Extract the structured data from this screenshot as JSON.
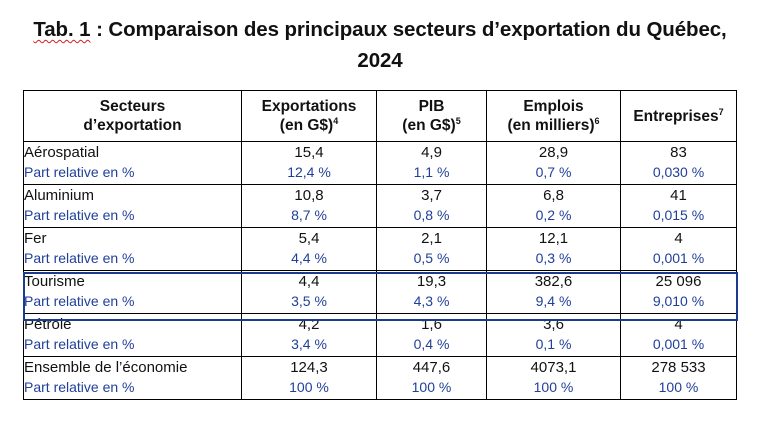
{
  "title": {
    "prefix": "Tab. 1",
    "line1_rest": " : Comparaison des principaux secteurs d’exportation du Québec,",
    "line2": "2024"
  },
  "headers": {
    "sector": {
      "line1": "Secteurs",
      "line2": "d’exportation"
    },
    "exports": {
      "line1": "Exportations",
      "line2": "(en G$)",
      "note": "4"
    },
    "pib": {
      "line1": "PIB",
      "line2": "(en G$)",
      "note": "5"
    },
    "jobs": {
      "line1": "Emplois",
      "line2": "(en milliers)",
      "note": "6"
    },
    "firms": {
      "line1": "Entreprises",
      "note": "7"
    }
  },
  "rows": [
    {
      "sector": "Aérospatial",
      "share_label": "Part relative en %",
      "exports": "15,4",
      "exports_pct": "12,4 %",
      "pib": "4,9",
      "pib_pct": "1,1 %",
      "jobs": "28,9",
      "jobs_pct": "0,7 %",
      "firms": "83",
      "firms_pct": "0,030 %"
    },
    {
      "sector": "Aluminium",
      "share_label": "Part relative en %",
      "exports": "10,8",
      "exports_pct": "8,7 %",
      "pib": "3,7",
      "pib_pct": "0,8 %",
      "jobs": "6,8",
      "jobs_pct": "0,2 %",
      "firms": "41",
      "firms_pct": "0,015 %"
    },
    {
      "sector": "Fer",
      "share_label": "Part relative en %",
      "exports": "5,4",
      "exports_pct": "4,4 %",
      "pib": "2,1",
      "pib_pct": "0,5 %",
      "jobs": "12,1",
      "jobs_pct": "0,3 %",
      "firms": "4",
      "firms_pct": "0,001 %"
    },
    {
      "sector": "Tourisme",
      "share_label": "Part relative en %",
      "exports": "4,4",
      "exports_pct": "3,5 %",
      "pib": "19,3",
      "pib_pct": "4,3 %",
      "jobs": "382,6",
      "jobs_pct": "9,4 %",
      "firms": "25 096",
      "firms_pct": "9,010 %"
    },
    {
      "sector": "Pétrole",
      "share_label": "Part relative en %",
      "exports": "4,2",
      "exports_pct": "3,4 %",
      "pib": "1,6",
      "pib_pct": "0,4 %",
      "jobs": "3,6",
      "jobs_pct": "0,1 %",
      "firms": "4",
      "firms_pct": "0,001 %"
    },
    {
      "sector": "Ensemble de l’économie",
      "share_label": "Part relative en %",
      "exports": "124,3",
      "exports_pct": "100 %",
      "pib": "447,6",
      "pib_pct": "100 %",
      "jobs": "4073,1",
      "jobs_pct": "100 %",
      "firms": "278 533",
      "firms_pct": "100 %"
    }
  ],
  "highlighted_row": "Tourisme",
  "colors": {
    "share_text": "#1f3f9a",
    "highlight_border": "#1c3a8e",
    "spellcheck_underline": "#d02020"
  }
}
